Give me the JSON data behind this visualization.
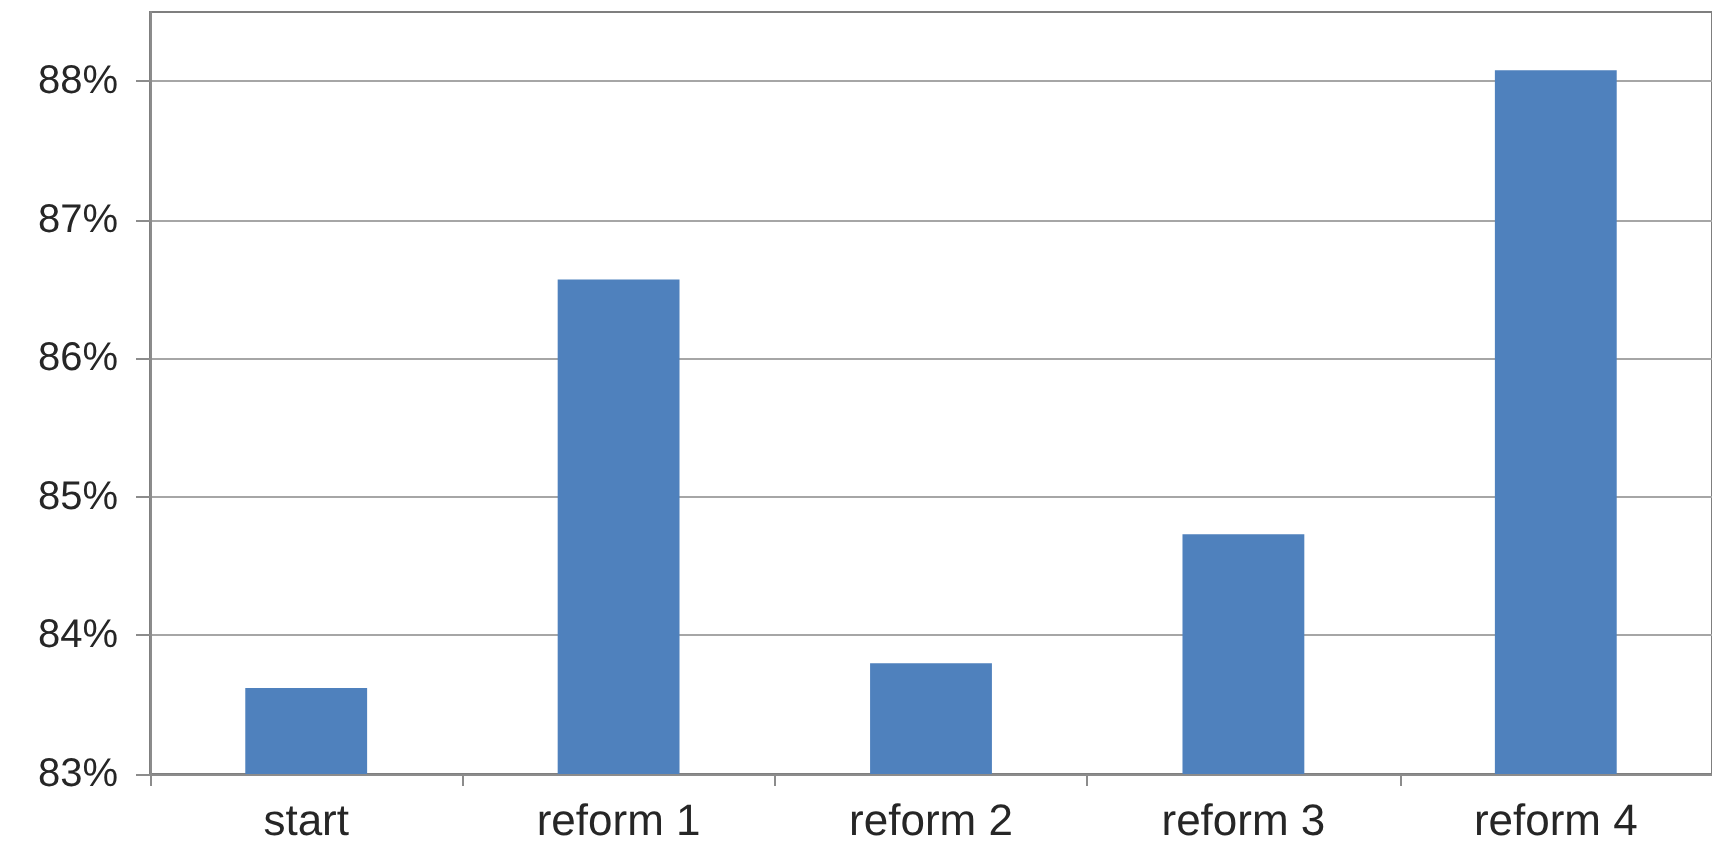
{
  "chart_data": {
    "type": "bar",
    "categories": [
      "start",
      "reform 1",
      "reform 2",
      "reform 3",
      "reform 4"
    ],
    "values": [
      83.62,
      86.57,
      83.8,
      84.73,
      88.08
    ],
    "color": "#4f81bd",
    "ylim": [
      83,
      88.5
    ],
    "yticks": [
      {
        "value": 83,
        "label": "83%"
      },
      {
        "value": 84,
        "label": "84%"
      },
      {
        "value": 85,
        "label": "85%"
      },
      {
        "value": 86,
        "label": "86%"
      },
      {
        "value": 87,
        "label": "87%"
      },
      {
        "value": 88,
        "label": "88%"
      }
    ],
    "grid": "y"
  }
}
